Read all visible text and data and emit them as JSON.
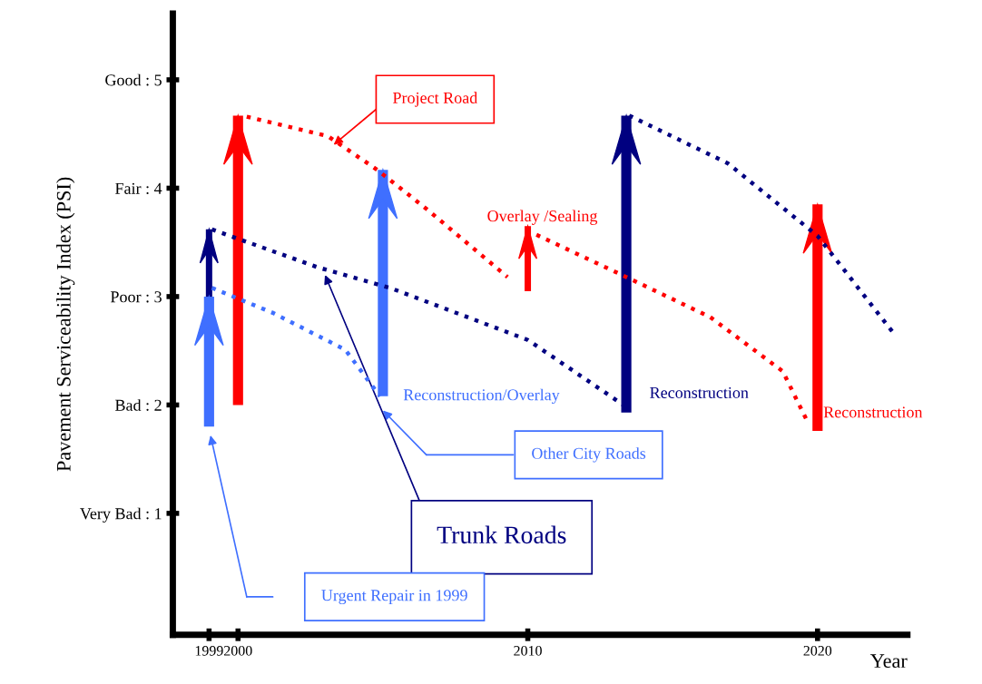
{
  "chart_data": {
    "type": "line",
    "ylabel": "Pavement Serviceability Index (PSI)",
    "xlabel": "Year",
    "xlim": [
      1997.75,
      2023.1
    ],
    "ylim": [
      -0.12,
      5.61
    ],
    "xticks": [
      1999,
      2000,
      2010,
      2020
    ],
    "yticks": [
      {
        "value": 1,
        "label": "Very Bad : 1"
      },
      {
        "value": 2,
        "label": "Bad : 2"
      },
      {
        "value": 3,
        "label": "Poor : 3"
      },
      {
        "value": 4,
        "label": "Fair : 4"
      },
      {
        "value": 5,
        "label": "Good : 5"
      }
    ],
    "grid": false,
    "marker": "none",
    "series": [
      {
        "line_style": "dotted",
        "color": "#ff0000",
        "x": [
          2000.3,
          2003.1,
          2004.8,
          2006.5,
          2009.3,
          null,
          2010.3,
          2013.4,
          2016.3,
          2018.8,
          2019.7
        ],
        "values": [
          4.66,
          4.48,
          4.17,
          3.81,
          3.18,
          null,
          3.57,
          3.18,
          2.81,
          2.31,
          1.82
        ]
      },
      {
        "line_style": "dotted",
        "color": "#000080",
        "x": [
          1999.1,
          2002.75,
          2005.25,
          2010,
          2013.3,
          null,
          2013.5,
          2016.9,
          2020,
          2022.6
        ],
        "values": [
          3.62,
          3.27,
          3.08,
          2.6,
          2.0,
          null,
          4.67,
          4.23,
          3.56,
          2.67
        ]
      },
      {
        "line_style": "dotted",
        "color": "#3f6fff",
        "x": [
          1999.1,
          2001.2,
          2003.7,
          2004.9
        ],
        "values": [
          3.08,
          2.85,
          2.51,
          2.08
        ]
      },
      {
        "type": "bar",
        "color": "#ff0000",
        "x": [
          2000,
          2010,
          2020
        ],
        "base": [
          2.0,
          3.05,
          1.76
        ],
        "values": [
          2.67,
          0.6,
          2.09
        ]
      },
      {
        "type": "bar",
        "color": "#000080",
        "x": [
          1999,
          2013.4
        ],
        "base": [
          3.0,
          1.93
        ],
        "values": [
          0.62,
          2.74
        ]
      },
      {
        "type": "bar",
        "color": "#3f6fff",
        "x": [
          1999,
          2005
        ],
        "base": [
          1.8,
          2.08
        ],
        "values": [
          1.2,
          2.09
        ]
      }
    ],
    "annotations": [
      {
        "text": "Project Road",
        "x": 2003.3,
        "y": 4.4
      },
      "Overlay /Sealing",
      "Reconstruction/Overlay",
      "Reconstruction",
      "Reconstruction",
      "Other City Roads",
      "Trunk Roads",
      "Urgent Repair in 1999"
    ]
  }
}
